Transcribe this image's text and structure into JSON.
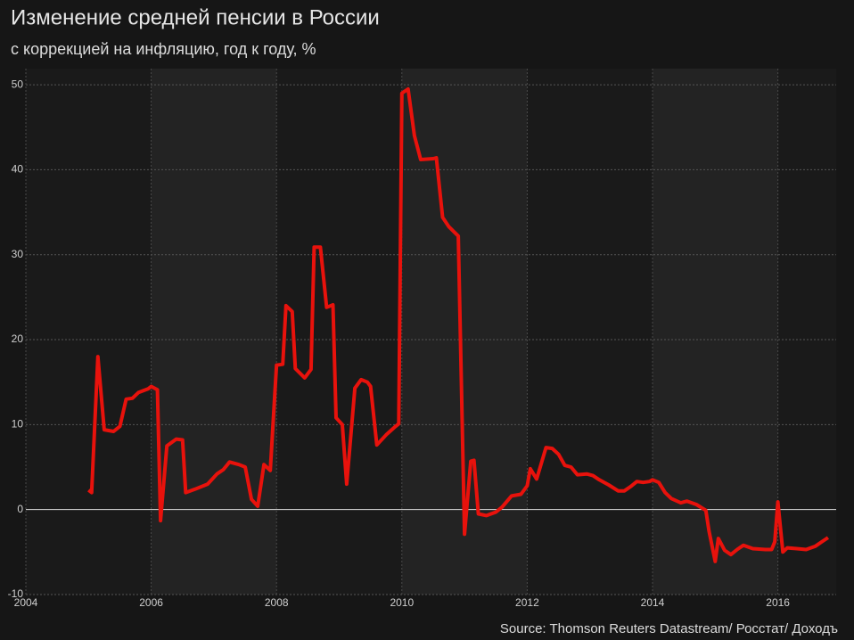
{
  "chart_data": {
    "type": "line",
    "title": "Изменение средней пенсии в России",
    "subtitle": "с коррекцией на инфляцию, год к году, %",
    "source": "Source: Thomson Reuters Datastream/ Росстат/ Доходъ",
    "xlim": [
      2004,
      2016.93
    ],
    "xticks": [
      2004,
      2006,
      2008,
      2010,
      2012,
      2014,
      2016
    ],
    "ylim": [
      -10,
      51.9
    ],
    "yticks": [
      -10,
      0,
      10,
      20,
      30,
      40,
      50
    ],
    "grid": true,
    "series": [
      {
        "name": "Изменение средней пенсии",
        "color": "#e8120c",
        "x": [
          2005.0,
          2005.05,
          2005.15,
          2005.25,
          2005.4,
          2005.5,
          2005.6,
          2005.7,
          2005.8,
          2005.95,
          2006.0,
          2006.1,
          2006.15,
          2006.25,
          2006.4,
          2006.5,
          2006.55,
          2006.7,
          2006.9,
          2007.05,
          2007.15,
          2007.25,
          2007.4,
          2007.5,
          2007.6,
          2007.7,
          2007.8,
          2007.9,
          2008.0,
          2008.1,
          2008.15,
          2008.25,
          2008.3,
          2008.45,
          2008.55,
          2008.6,
          2008.7,
          2008.8,
          2008.9,
          2008.95,
          2009.05,
          2009.12,
          2009.25,
          2009.35,
          2009.45,
          2009.5,
          2009.6,
          2009.75,
          2009.9,
          2009.95,
          2010.0,
          2010.1,
          2010.2,
          2010.3,
          2010.5,
          2010.55,
          2010.65,
          2010.75,
          2010.9,
          2011.0,
          2011.1,
          2011.15,
          2011.22,
          2011.35,
          2011.5,
          2011.6,
          2011.75,
          2011.9,
          2012.0,
          2012.05,
          2012.15,
          2012.3,
          2012.4,
          2012.5,
          2012.6,
          2012.7,
          2012.8,
          2012.95,
          2013.05,
          2013.15,
          2013.3,
          2013.45,
          2013.55,
          2013.65,
          2013.75,
          2013.85,
          2013.95,
          2014.0,
          2014.1,
          2014.2,
          2014.3,
          2014.45,
          2014.55,
          2014.7,
          2014.85,
          2014.9,
          2015.0,
          2015.05,
          2015.15,
          2015.25,
          2015.35,
          2015.45,
          2015.6,
          2015.8,
          2015.9,
          2015.95,
          2016.0,
          2016.08,
          2016.15,
          2016.3,
          2016.45,
          2016.6,
          2016.7,
          2016.8
        ],
        "values": [
          2.3,
          2.0,
          18.0,
          9.4,
          9.2,
          9.8,
          13.0,
          13.1,
          13.8,
          14.2,
          14.5,
          14.1,
          -1.3,
          7.5,
          8.3,
          8.2,
          2.0,
          2.4,
          3.0,
          4.2,
          4.7,
          5.6,
          5.3,
          5.0,
          1.2,
          0.4,
          5.3,
          4.6,
          17.0,
          17.1,
          24.0,
          23.3,
          16.6,
          15.5,
          16.5,
          30.9,
          30.9,
          23.8,
          24.1,
          10.8,
          10.0,
          3.0,
          14.3,
          15.3,
          15.0,
          14.5,
          7.6,
          8.8,
          9.8,
          10.1,
          49.0,
          49.5,
          44.0,
          41.2,
          41.3,
          41.4,
          34.4,
          33.3,
          32.2,
          -2.9,
          5.7,
          5.8,
          -0.5,
          -0.7,
          -0.3,
          0.3,
          1.6,
          1.8,
          2.8,
          4.8,
          3.6,
          7.3,
          7.2,
          6.5,
          5.2,
          5.0,
          4.1,
          4.2,
          4.0,
          3.5,
          2.9,
          2.2,
          2.2,
          2.7,
          3.3,
          3.2,
          3.3,
          3.5,
          3.2,
          2.0,
          1.3,
          0.8,
          1.0,
          0.6,
          -0.1,
          -2.5,
          -6.1,
          -3.4,
          -4.8,
          -5.3,
          -4.7,
          -4.2,
          -4.6,
          -4.7,
          -4.7,
          -3.8,
          0.9,
          -5.0,
          -4.5,
          -4.6,
          -4.7,
          -4.3,
          -3.8,
          -3.3
        ]
      }
    ]
  }
}
